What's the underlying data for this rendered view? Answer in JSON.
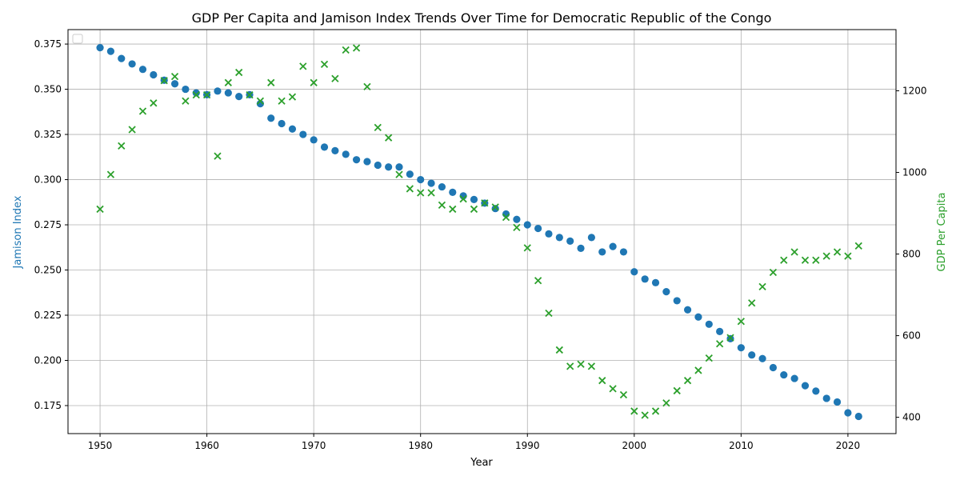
{
  "chart_data": {
    "type": "scatter",
    "title": "GDP Per Capita and Jamison Index Trends Over Time for Democratic Republic of the Congo",
    "xlabel": "Year",
    "ylabel_left": "Jamison Index",
    "ylabel_right": "GDP Per Capita",
    "xlim": [
      1947,
      2024.5
    ],
    "ylim_left": [
      0.1595,
      0.383
    ],
    "ylim_right": [
      360,
      1350
    ],
    "x_ticks": [
      1950,
      1960,
      1970,
      1980,
      1990,
      2000,
      2010,
      2020
    ],
    "y_ticks_left": [
      0.175,
      0.2,
      0.225,
      0.25,
      0.275,
      0.3,
      0.325,
      0.35,
      0.375
    ],
    "y_ticks_right": [
      400,
      600,
      800,
      1000,
      1200
    ],
    "grid": true,
    "legend": "top-left",
    "colors": {
      "jamison": "#1f77b4",
      "gdp": "#2ca02c"
    },
    "years": [
      1950,
      1951,
      1952,
      1953,
      1954,
      1955,
      1956,
      1957,
      1958,
      1959,
      1960,
      1961,
      1962,
      1963,
      1964,
      1965,
      1966,
      1967,
      1968,
      1969,
      1970,
      1971,
      1972,
      1973,
      1974,
      1975,
      1976,
      1977,
      1978,
      1979,
      1980,
      1981,
      1982,
      1983,
      1984,
      1985,
      1986,
      1987,
      1988,
      1989,
      1990,
      1991,
      1992,
      1993,
      1994,
      1995,
      1996,
      1997,
      1998,
      1999,
      2000,
      2001,
      2002,
      2003,
      2004,
      2005,
      2006,
      2007,
      2008,
      2009,
      2010,
      2011,
      2012,
      2013,
      2014,
      2015,
      2016,
      2017,
      2018,
      2019,
      2020,
      2021
    ],
    "series": [
      {
        "name": "Jamison Index",
        "axis": "left",
        "marker": "circle",
        "values": [
          0.373,
          0.371,
          0.367,
          0.364,
          0.361,
          0.358,
          0.355,
          0.353,
          0.35,
          0.348,
          0.347,
          0.349,
          0.348,
          0.346,
          0.347,
          0.342,
          0.334,
          0.331,
          0.328,
          0.325,
          0.322,
          0.318,
          0.316,
          0.314,
          0.311,
          0.31,
          0.308,
          0.307,
          0.307,
          0.303,
          0.3,
          0.298,
          0.296,
          0.293,
          0.291,
          0.289,
          0.287,
          0.284,
          0.281,
          0.278,
          0.275,
          0.273,
          0.27,
          0.268,
          0.266,
          0.262,
          0.268,
          0.26,
          0.263,
          0.26,
          0.249,
          0.245,
          0.243,
          0.238,
          0.233,
          0.228,
          0.224,
          0.22,
          0.216,
          0.212,
          0.207,
          0.203,
          0.201,
          0.196,
          0.192,
          0.19,
          0.186,
          0.183,
          0.179,
          0.177,
          0.171,
          0.169
        ]
      },
      {
        "name": "GDP Per Capita",
        "axis": "right",
        "marker": "x",
        "values": [
          910,
          995,
          1065,
          1105,
          1150,
          1170,
          1225,
          1235,
          1175,
          1190,
          1190,
          1040,
          1220,
          1245,
          1190,
          1175,
          1220,
          1175,
          1185,
          1260,
          1220,
          1265,
          1230,
          1300,
          1305,
          1210,
          1110,
          1085,
          995,
          960,
          950,
          950,
          920,
          910,
          935,
          910,
          925,
          915,
          890,
          865,
          815,
          735,
          655,
          565,
          525,
          530,
          525,
          490,
          470,
          455,
          415,
          405,
          415,
          435,
          465,
          490,
          515,
          545,
          580,
          595,
          635,
          680,
          720,
          755,
          785,
          805,
          785,
          785,
          795,
          805,
          795,
          820
        ]
      }
    ]
  }
}
